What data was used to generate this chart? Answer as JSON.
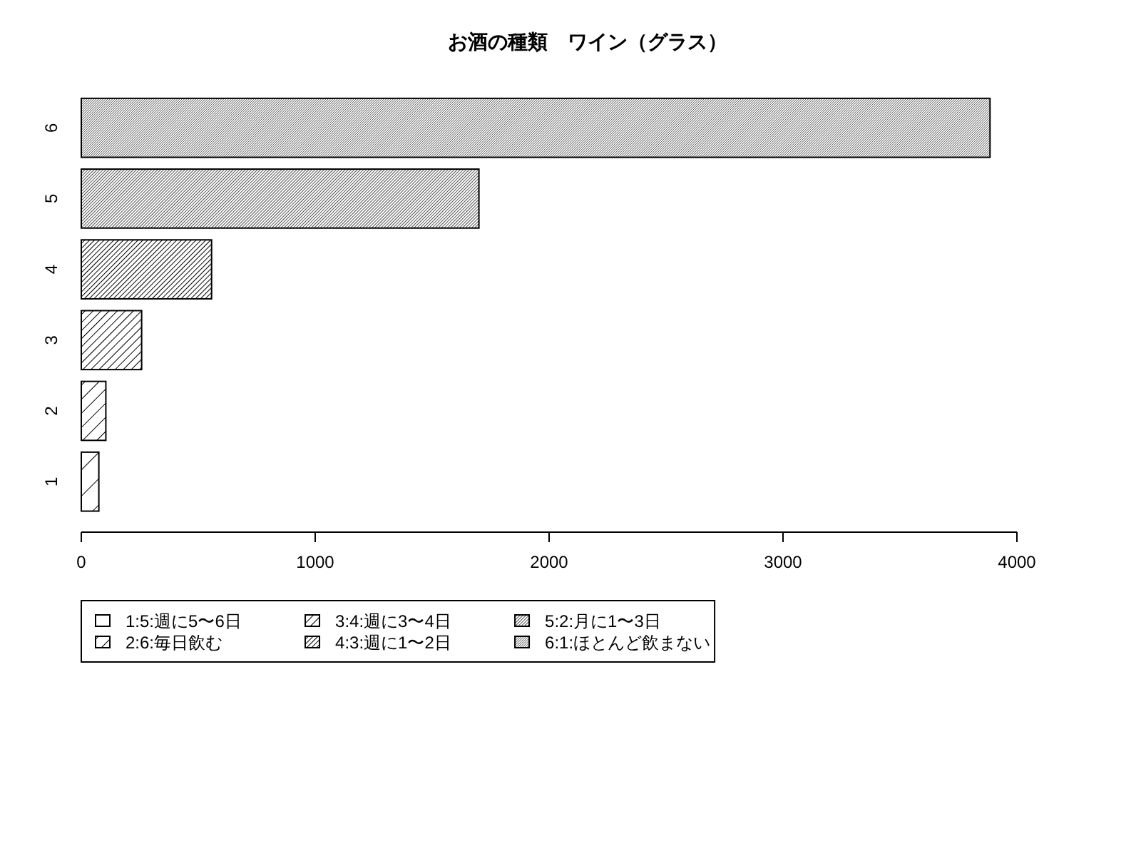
{
  "chart_data": {
    "type": "bar",
    "title": "お酒の種類　ワイン（グラス）",
    "orientation": "horizontal",
    "stacked": true,
    "categories": [
      "6",
      "5",
      "4",
      "3",
      "2",
      "1"
    ],
    "series": [
      {
        "name": "1:5:週に5〜6日",
        "color": "#000000",
        "values": [
          null,
          null,
          null,
          null,
          null,
          75
        ]
      },
      {
        "name": "2:6:毎日飲む",
        "color": "#000000",
        "values": [
          null,
          null,
          null,
          null,
          105,
          null
        ]
      },
      {
        "name": "3:4:週に3〜4日",
        "color": "#000000",
        "values": [
          null,
          null,
          null,
          258,
          null,
          null
        ]
      },
      {
        "name": "4:3:週に1〜2日",
        "color": "#000000",
        "values": [
          null,
          null,
          557,
          null,
          null,
          null
        ]
      },
      {
        "name": "5:2:月に1〜3日",
        "color": "#000000",
        "values": [
          null,
          1700,
          null,
          null,
          null,
          null
        ]
      },
      {
        "name": "6:1:ほとんど飲まない",
        "color": "#000000",
        "values": [
          3885,
          null,
          null,
          null,
          null,
          null
        ]
      }
    ],
    "xlim": [
      0,
      4000
    ],
    "xticks": [
      0,
      1000,
      2000,
      3000,
      4000
    ],
    "legend": "bottom"
  }
}
